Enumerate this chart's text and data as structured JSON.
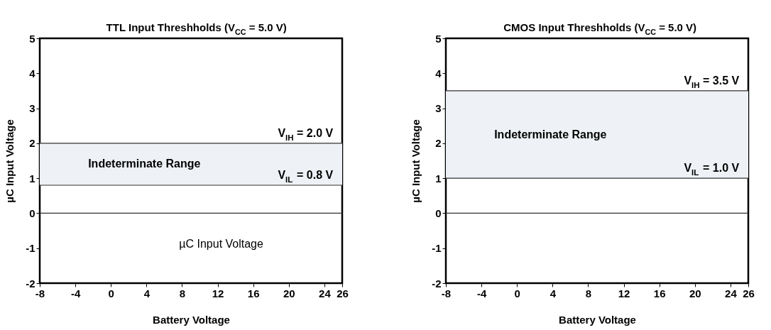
{
  "chart_data": [
    {
      "type": "line",
      "title": "TTL Input Threshholds (V$_{CC}$ = 5.0 V)",
      "xlabel": "Battery Voltage",
      "ylabel": "µC Input Voltage",
      "xlim": [
        -8,
        26
      ],
      "xticks": [
        -8,
        -4,
        0,
        4,
        8,
        12,
        16,
        20,
        24,
        26
      ],
      "ylim": [
        -2,
        5
      ],
      "yticks": [
        -2,
        -1,
        0,
        1,
        2,
        3,
        4,
        5
      ],
      "ref_lines": [
        {
          "axis": "y",
          "value": 2.0,
          "label": "V$_{IH}$ = 2.0 V",
          "color": "#333333"
        },
        {
          "axis": "y",
          "value": 0.8,
          "label": "V$_{IL}$ = 0.8 V",
          "color": "#333333"
        },
        {
          "axis": "y",
          "value": 0,
          "label": null,
          "color": "#333333"
        }
      ],
      "bands": [
        {
          "axis": "y",
          "from": 0.8,
          "to": 2.0,
          "label": "Indeterminate Range",
          "color": "#eef1f5"
        }
      ],
      "annotations": [
        "µC Input Voltage"
      ]
    },
    {
      "type": "line",
      "title": "CMOS Input Threshholds (V$_{CC}$ = 5.0 V)",
      "xlabel": "Battery Voltage",
      "ylabel": "µC Input Voltage",
      "xlim": [
        -8,
        26
      ],
      "xticks": [
        -8,
        -4,
        0,
        4,
        8,
        12,
        16,
        20,
        24,
        26
      ],
      "ylim": [
        -2,
        5
      ],
      "yticks": [
        -2,
        -1,
        0,
        1,
        2,
        3,
        4,
        5
      ],
      "ref_lines": [
        {
          "axis": "y",
          "value": 3.5,
          "label": "V$_{IH}$ = 3.5 V",
          "color": "#333333"
        },
        {
          "axis": "y",
          "value": 1.0,
          "label": "V$_{IL}$ = 1.0 V",
          "color": "#333333"
        },
        {
          "axis": "y",
          "value": 0,
          "label": null,
          "color": "#333333"
        }
      ],
      "bands": [
        {
          "axis": "y",
          "from": 1.0,
          "to": 3.5,
          "label": "Indeterminate Range",
          "color": "#eef1f5"
        }
      ]
    }
  ]
}
